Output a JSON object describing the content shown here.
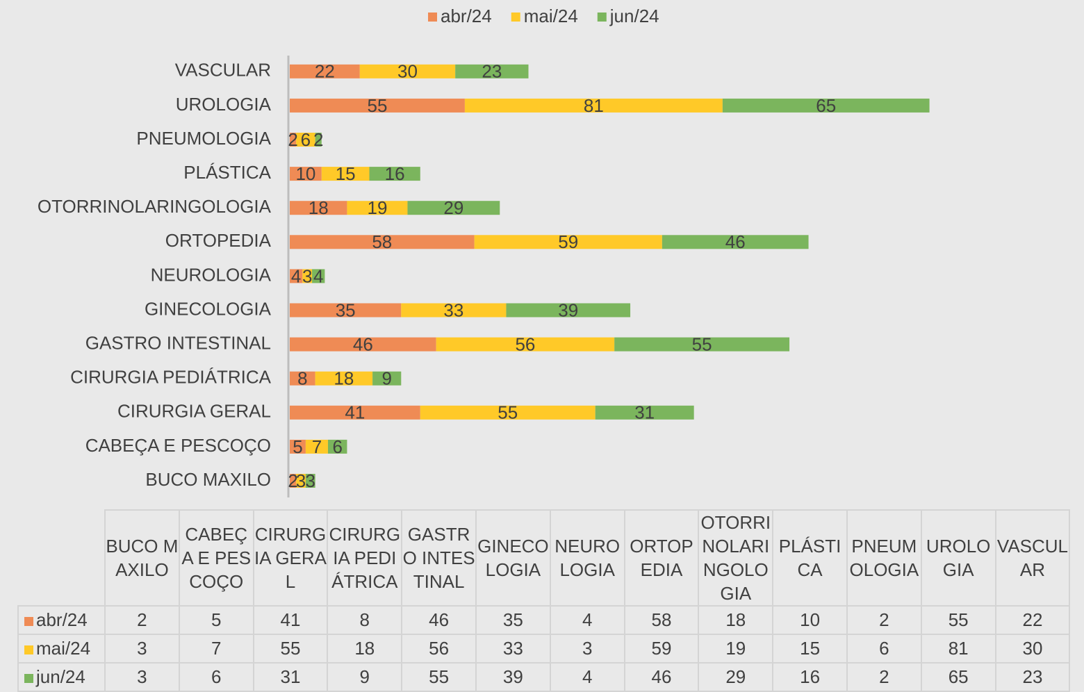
{
  "chart_data": {
    "type": "stacked-bar-horizontal",
    "categories": [
      "BUCO MAXILO",
      "CABEÇA E PESCOÇO",
      "CIRURGIA GERAL",
      "CIRURGIA PEDIÁTRICA",
      "GASTRO INTESTINAL",
      "GINECOLOGIA",
      "NEUROLOGIA",
      "ORTOPEDIA",
      "OTORRINOLARINGOLOGIA",
      "PLÁSTICA",
      "PNEUMOLOGIA",
      "UROLOGIA",
      "VASCULAR"
    ],
    "series": [
      {
        "name": "abr/24",
        "color": "#ef8b55",
        "values": [
          2,
          5,
          41,
          8,
          46,
          35,
          4,
          58,
          18,
          10,
          2,
          55,
          22
        ]
      },
      {
        "name": "mai/24",
        "color": "#ffc928",
        "values": [
          3,
          7,
          55,
          18,
          56,
          33,
          3,
          59,
          19,
          15,
          6,
          81,
          30
        ]
      },
      {
        "name": "jun/24",
        "color": "#7bb55d",
        "values": [
          3,
          6,
          31,
          9,
          55,
          39,
          4,
          46,
          29,
          16,
          2,
          65,
          23
        ]
      }
    ],
    "legend": "top",
    "data_table": true
  }
}
